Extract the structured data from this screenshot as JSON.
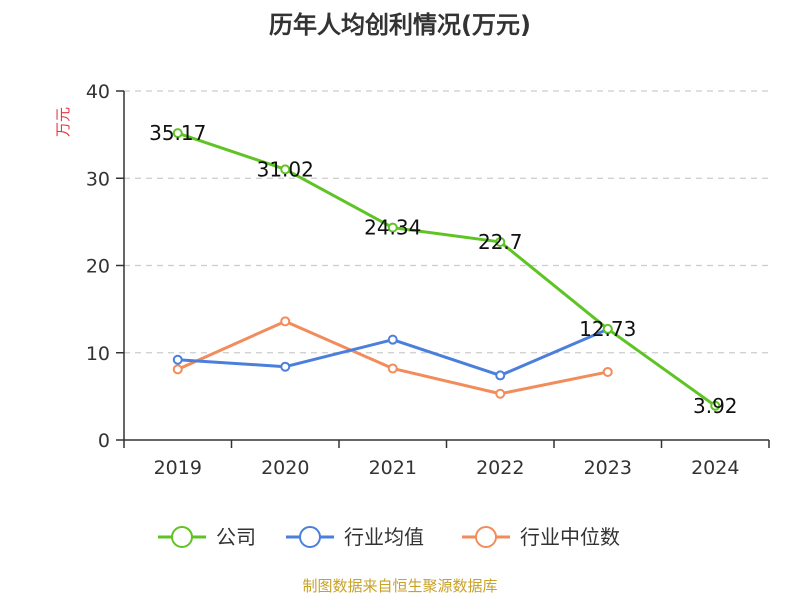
{
  "chart_data": {
    "type": "line",
    "title": "历年人均创利情况(万元)",
    "ylabel": "万元",
    "xlabel": "",
    "ylim": [
      0,
      40
    ],
    "yticks": [
      0,
      10,
      20,
      30,
      40
    ],
    "grid": true,
    "legend_position": "bottom",
    "categories": [
      "2019",
      "2020",
      "2021",
      "2022",
      "2023",
      "2024"
    ],
    "series": [
      {
        "name": "公司",
        "color": "#5ec423",
        "values": [
          35.17,
          31.02,
          24.34,
          22.7,
          12.73,
          3.92
        ],
        "labels": [
          "35.17",
          "31.02",
          "24.34",
          "22.7",
          "12.73",
          "3.92"
        ]
      },
      {
        "name": "行业均值",
        "color": "#4a7fdc",
        "values": [
          9.2,
          8.4,
          11.5,
          7.4,
          12.7,
          null
        ]
      },
      {
        "name": "行业中位数",
        "color": "#f28c5a",
        "values": [
          8.1,
          13.6,
          8.2,
          5.3,
          7.8,
          null
        ]
      }
    ],
    "source": "制图数据来自恒生聚源数据库",
    "colors": {
      "ylabel": "#e8373e",
      "source": "#c9a227",
      "grid": "#cccccc",
      "axis": "#333333"
    }
  }
}
